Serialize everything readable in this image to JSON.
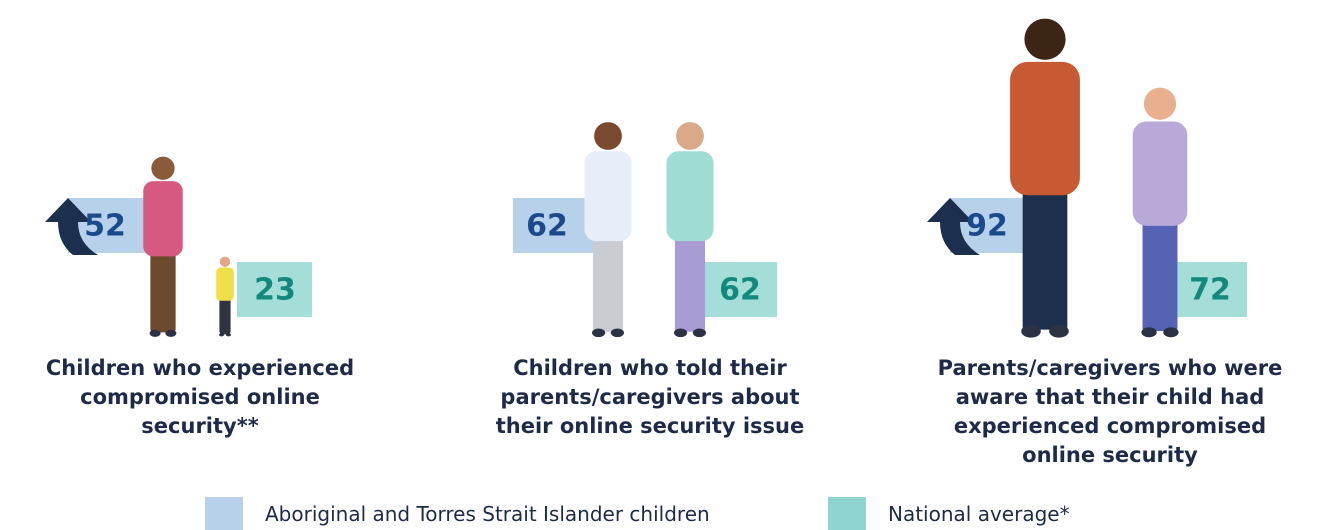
{
  "chart_data": {
    "type": "pictograph",
    "categories": [
      "Children who experienced compromised online security**",
      "Children who told their parents/caregivers about their online security issue",
      "Parents/caregivers who were aware that their child had experienced compromised online security"
    ],
    "series": [
      {
        "name": "Aboriginal and Torres Strait Islander children",
        "color": "#b8d1eb",
        "values": [
          52,
          62,
          92
        ]
      },
      {
        "name": "National average*",
        "color": "#8fd5cf",
        "values": [
          23,
          62,
          72
        ]
      }
    ]
  }
}
